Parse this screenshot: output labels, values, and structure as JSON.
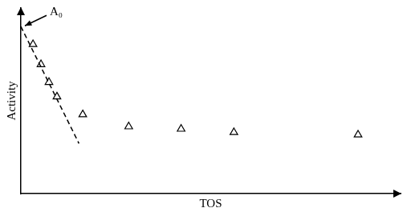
{
  "chart_data": {
    "type": "scatter",
    "x_label": "TOS",
    "y_label": "Activity",
    "xlim": [
      0,
      100
    ],
    "ylim": [
      0,
      100
    ],
    "tick_labels": false,
    "grid": false,
    "series": [
      {
        "type": "scatter",
        "marker": "triangle",
        "color": "#000000",
        "x": [
          3.2,
          5.3,
          7.4,
          9.5,
          16.3,
          28.4,
          42.2,
          56.1,
          88.8
        ],
        "values": [
          80.4,
          69.6,
          60,
          52.2,
          42.6,
          36.1,
          34.8,
          33,
          31.7
        ]
      },
      {
        "type": "line",
        "line_style": "dashed",
        "color": "#000000",
        "x": [
          0,
          15.3
        ],
        "values": [
          90,
          27
        ]
      }
    ],
    "annotations": [
      {
        "text": "A₀",
        "x": 0,
        "y": 90
      }
    ]
  }
}
